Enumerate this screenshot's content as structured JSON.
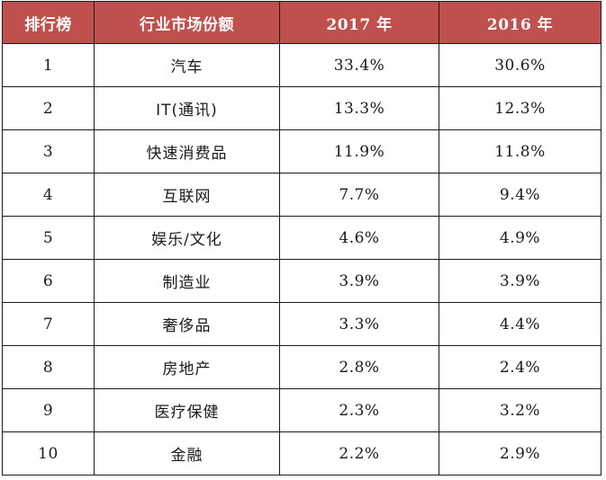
{
  "table": {
    "headers": {
      "rank": "排行榜",
      "industry": "行业市场份额",
      "y2017": "2017 年",
      "y2016": "2016 年"
    },
    "rows": [
      {
        "rank": "1",
        "industry": "汽车",
        "y2017": "33.4%",
        "y2016": "30.6%"
      },
      {
        "rank": "2",
        "industry": "IT(通讯)",
        "y2017": "13.3%",
        "y2016": "12.3%"
      },
      {
        "rank": "3",
        "industry": "快速消费品",
        "y2017": "11.9%",
        "y2016": "11.8%"
      },
      {
        "rank": "4",
        "industry": "互联网",
        "y2017": "7.7%",
        "y2016": "9.4%"
      },
      {
        "rank": "5",
        "industry": "娱乐/文化",
        "y2017": "4.6%",
        "y2016": "4.9%"
      },
      {
        "rank": "6",
        "industry": "制造业",
        "y2017": "3.9%",
        "y2016": "3.9%"
      },
      {
        "rank": "7",
        "industry": "奢侈品",
        "y2017": "3.3%",
        "y2016": "4.4%"
      },
      {
        "rank": "8",
        "industry": "房地产",
        "y2017": "2.8%",
        "y2016": "2.4%"
      },
      {
        "rank": "9",
        "industry": "医疗保健",
        "y2017": "2.3%",
        "y2016": "3.2%"
      },
      {
        "rank": "10",
        "industry": "金融",
        "y2017": "2.2%",
        "y2016": "2.9%"
      }
    ]
  },
  "colors": {
    "header_background": "#c0504d",
    "header_text": "#ffffff",
    "border": "#1b1b1b",
    "body_text": "#1a1a1a"
  }
}
